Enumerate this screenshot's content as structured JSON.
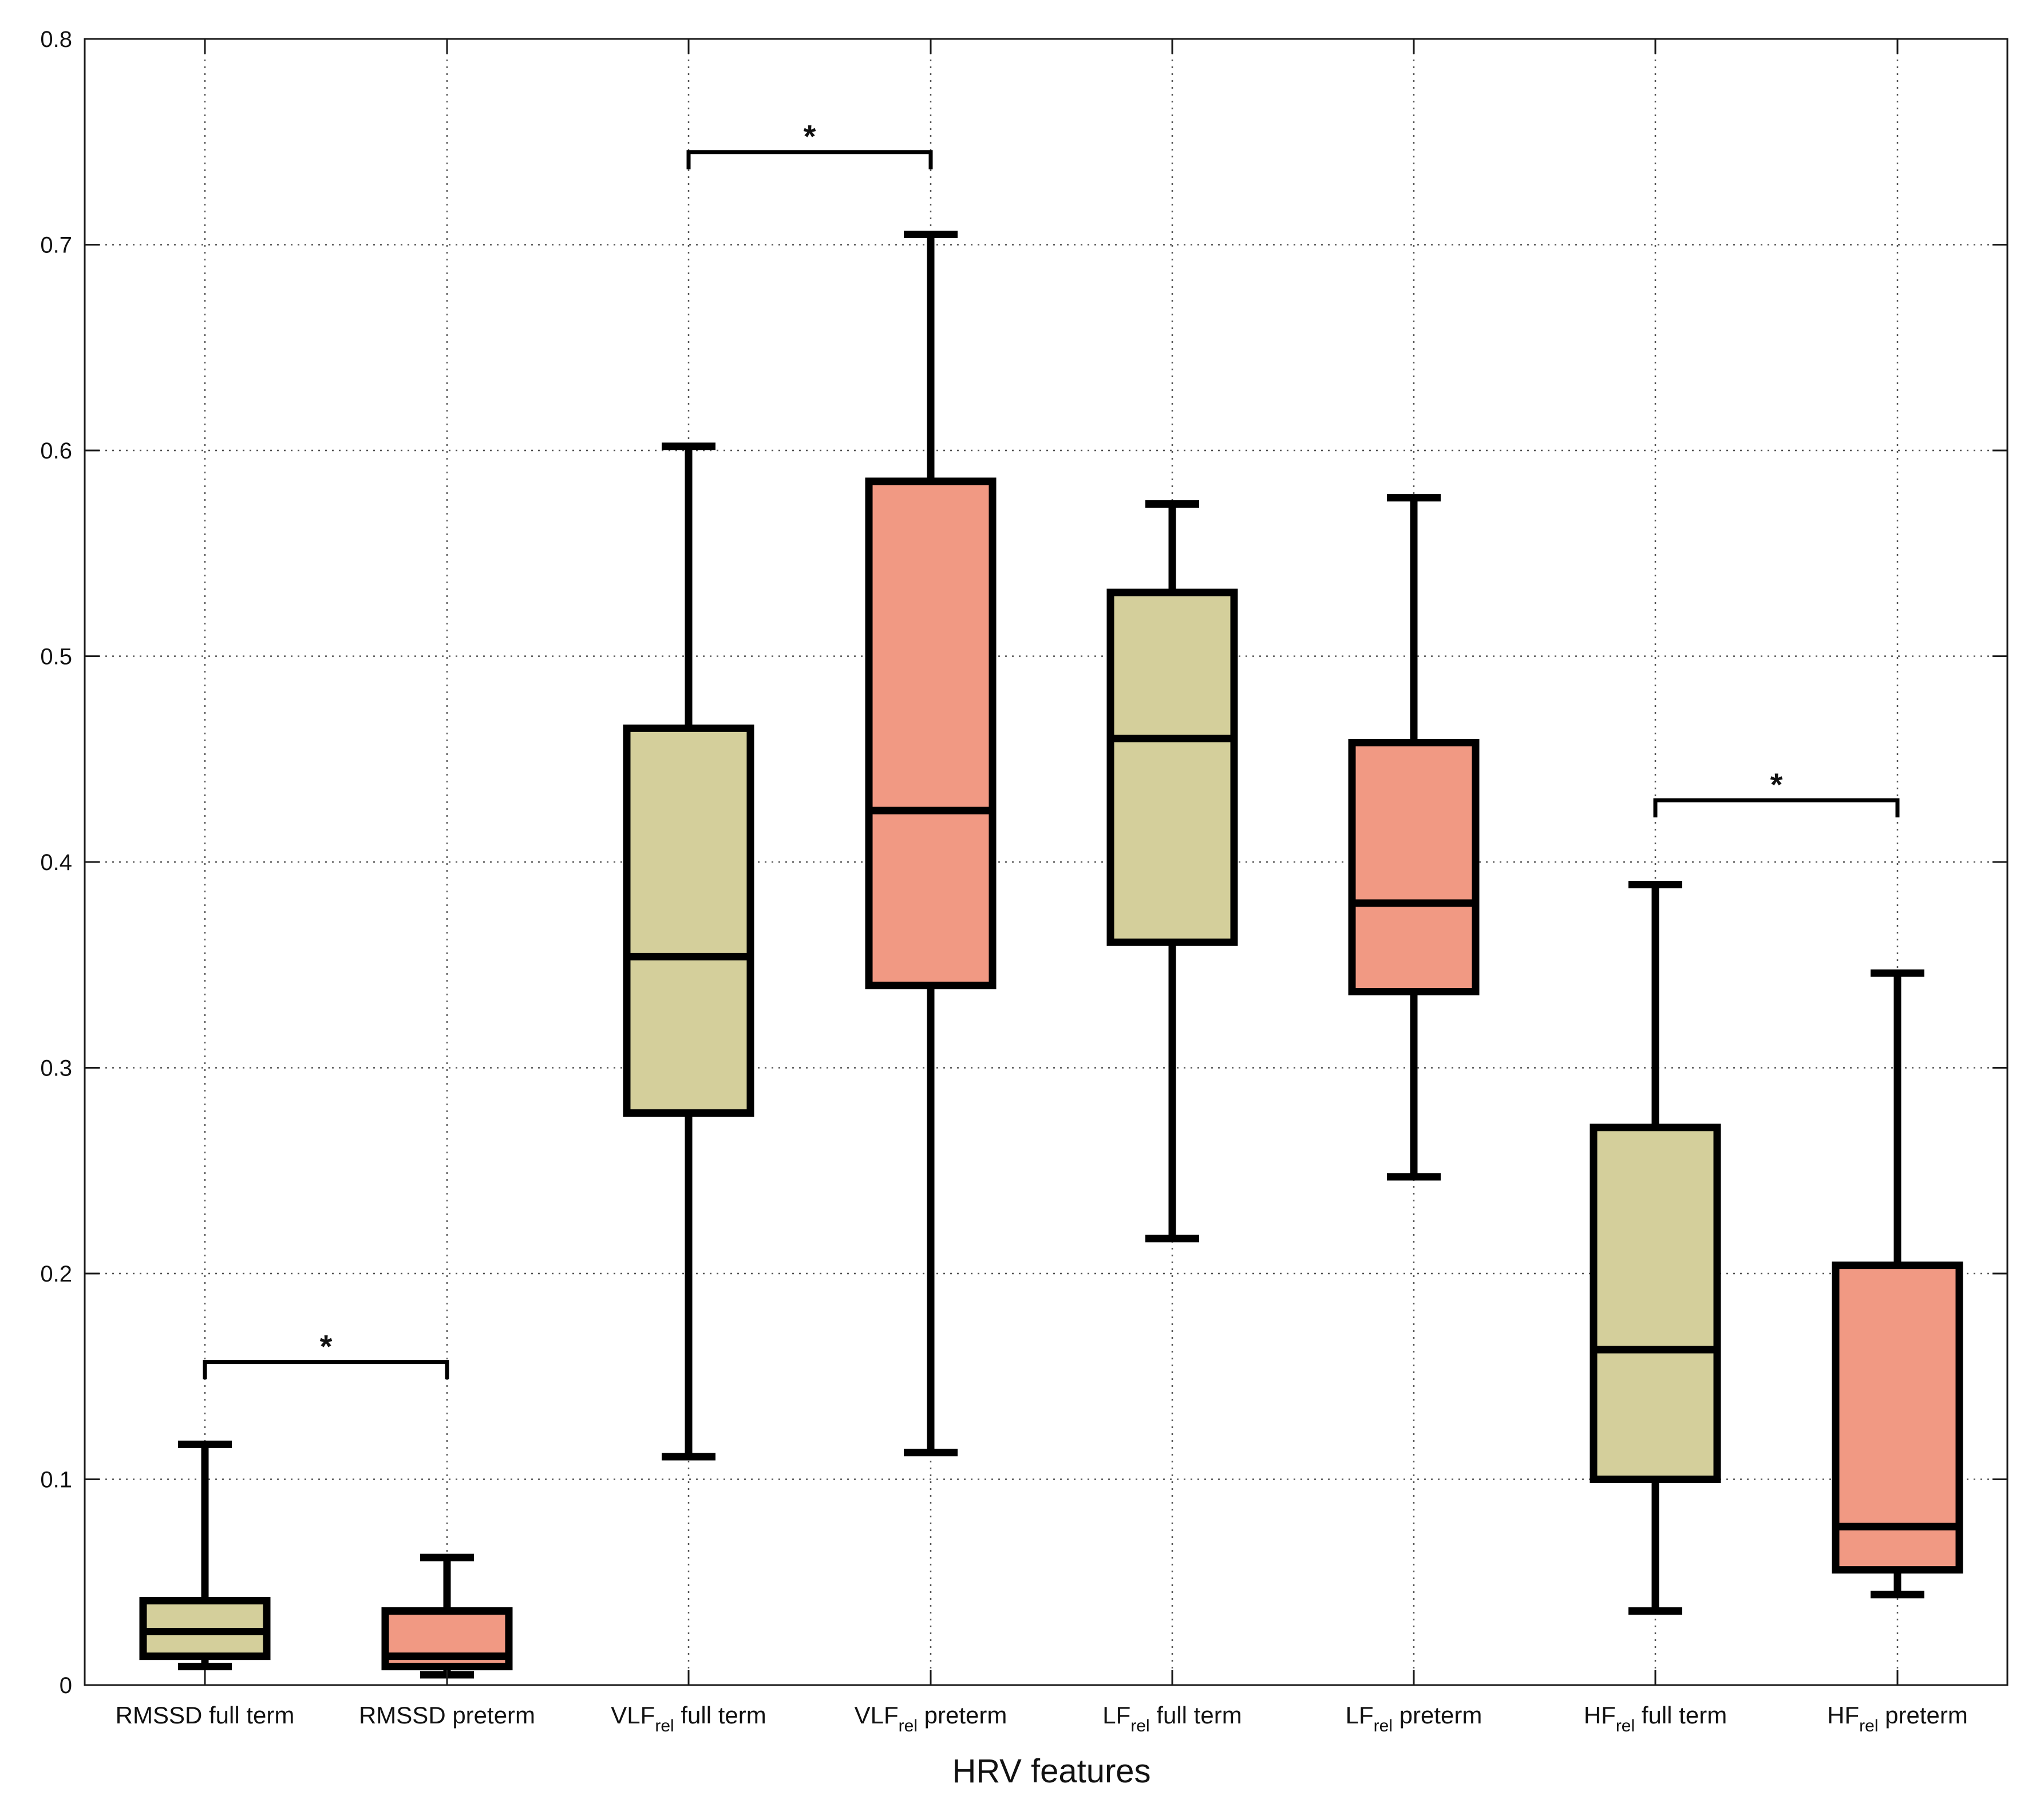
{
  "chart_data": {
    "type": "box",
    "title": "",
    "xlabel": "HRV features",
    "ylabel": "",
    "ylim": [
      0,
      0.8
    ],
    "yticks": [
      0,
      0.1,
      0.2,
      0.3,
      0.4,
      0.5,
      0.6,
      0.7,
      0.8
    ],
    "ytick_labels": [
      "0",
      "0.1",
      "0.2",
      "0.3",
      "0.4",
      "0.5",
      "0.6",
      "0.7",
      "0.8"
    ],
    "grid": true,
    "colors": {
      "full_term": "#d4cf9b",
      "preterm": "#f19983",
      "stroke": "#000000"
    },
    "categories": [
      {
        "base": "RMSSD",
        "sub": "",
        "suffix": "full term",
        "group": "full_term"
      },
      {
        "base": "RMSSD",
        "sub": "",
        "suffix": "preterm",
        "group": "preterm"
      },
      {
        "base": "VLF",
        "sub": "rel",
        "suffix": "full term",
        "group": "full_term"
      },
      {
        "base": "VLF",
        "sub": "rel",
        "suffix": "preterm",
        "group": "preterm"
      },
      {
        "base": "LF",
        "sub": "rel",
        "suffix": "full term",
        "group": "full_term"
      },
      {
        "base": "LF",
        "sub": "rel",
        "suffix": "preterm",
        "group": "preterm"
      },
      {
        "base": "HF",
        "sub": "rel",
        "suffix": "full term",
        "group": "full_term"
      },
      {
        "base": "HF",
        "sub": "rel",
        "suffix": "preterm",
        "group": "preterm"
      }
    ],
    "boxes": [
      {
        "whisker_low": 0.009,
        "q1": 0.014,
        "median": 0.026,
        "q3": 0.041,
        "whisker_high": 0.117
      },
      {
        "whisker_low": 0.005,
        "q1": 0.009,
        "median": 0.014,
        "q3": 0.036,
        "whisker_high": 0.062
      },
      {
        "whisker_low": 0.111,
        "q1": 0.278,
        "median": 0.354,
        "q3": 0.465,
        "whisker_high": 0.602
      },
      {
        "whisker_low": 0.113,
        "q1": 0.34,
        "median": 0.425,
        "q3": 0.585,
        "whisker_high": 0.705
      },
      {
        "whisker_low": 0.217,
        "q1": 0.361,
        "median": 0.46,
        "q3": 0.531,
        "whisker_high": 0.574
      },
      {
        "whisker_low": 0.247,
        "q1": 0.337,
        "median": 0.38,
        "q3": 0.458,
        "whisker_high": 0.577
      },
      {
        "whisker_low": 0.036,
        "q1": 0.1,
        "median": 0.163,
        "q3": 0.271,
        "whisker_high": 0.389
      },
      {
        "whisker_low": 0.044,
        "q1": 0.056,
        "median": 0.077,
        "q3": 0.204,
        "whisker_high": 0.346
      }
    ],
    "significance": [
      {
        "from": 0,
        "to": 1,
        "y": 0.157,
        "label": "*"
      },
      {
        "from": 2,
        "to": 3,
        "y": 0.745,
        "label": "*"
      },
      {
        "from": 6,
        "to": 7,
        "y": 0.43,
        "label": "*"
      }
    ]
  }
}
